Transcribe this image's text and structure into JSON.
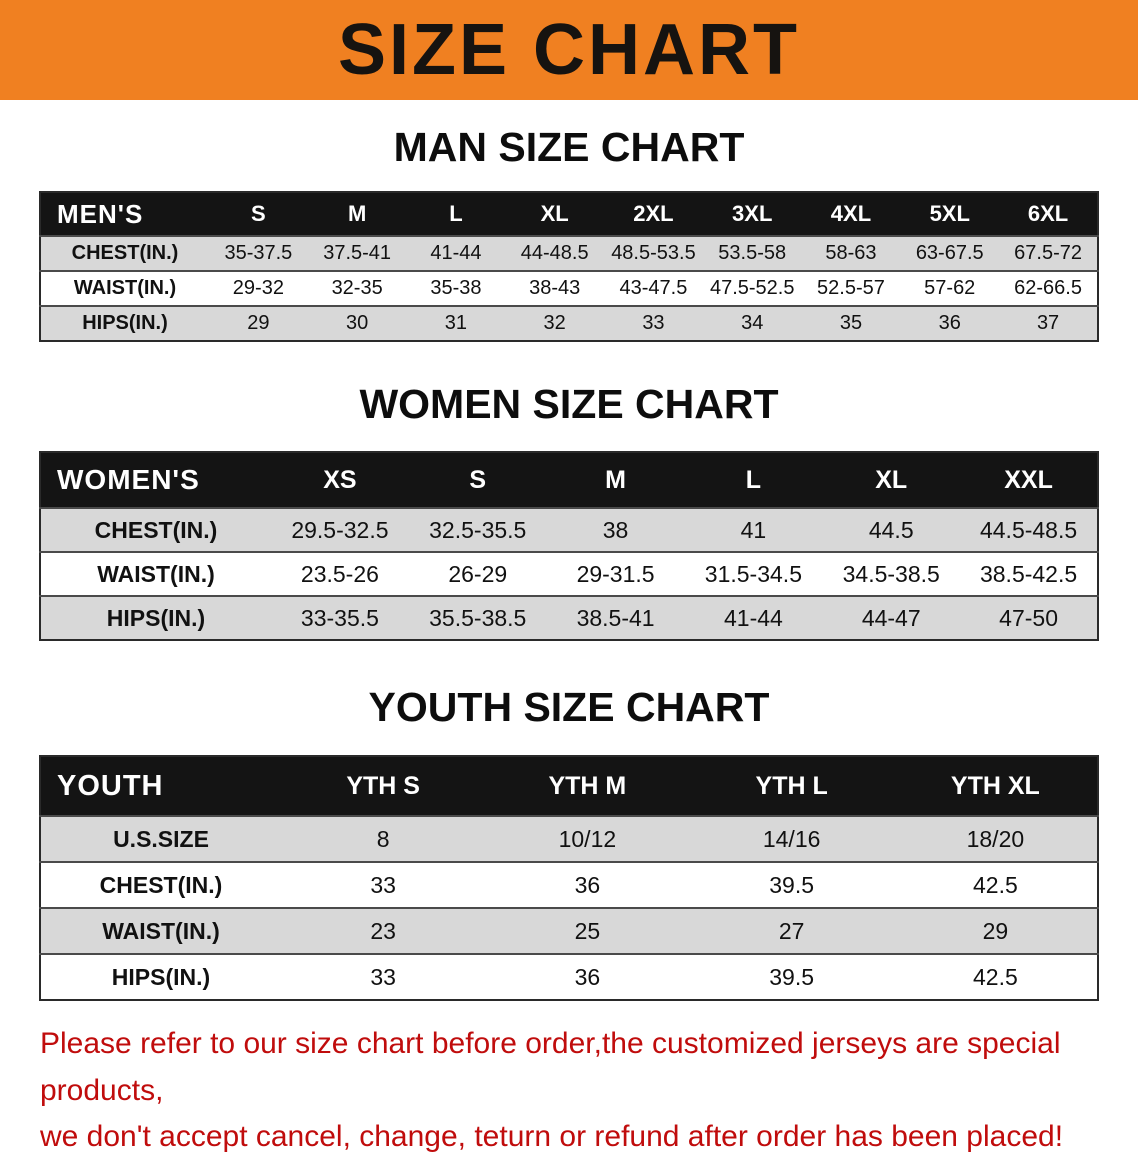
{
  "banner": {
    "title": "SIZE CHART",
    "bg_color": "#f08021"
  },
  "sections": [
    {
      "heading": "MAN SIZE CHART",
      "group_label": "MEN'S",
      "columns": [
        "S",
        "M",
        "L",
        "XL",
        "2XL",
        "3XL",
        "4XL",
        "5XL",
        "6XL"
      ],
      "rows": [
        {
          "label": "CHEST(IN.)",
          "values": [
            "35-37.5",
            "37.5-41",
            "41-44",
            "44-48.5",
            "48.5-53.5",
            "53.5-58",
            "58-63",
            "63-67.5",
            "67.5-72"
          ]
        },
        {
          "label": "WAIST(IN.)",
          "values": [
            "29-32",
            "32-35",
            "35-38",
            "38-43",
            "43-47.5",
            "47.5-52.5",
            "52.5-57",
            "57-62",
            "62-66.5"
          ]
        },
        {
          "label": "HIPS(IN.)",
          "values": [
            "29",
            "30",
            "31",
            "32",
            "33",
            "34",
            "35",
            "36",
            "37"
          ]
        }
      ]
    },
    {
      "heading": "WOMEN SIZE CHART",
      "group_label": "WOMEN'S",
      "columns": [
        "XS",
        "S",
        "M",
        "L",
        "XL",
        "XXL"
      ],
      "rows": [
        {
          "label": "CHEST(IN.)",
          "values": [
            "29.5-32.5",
            "32.5-35.5",
            "38",
            "41",
            "44.5",
            "44.5-48.5"
          ]
        },
        {
          "label": "WAIST(IN.)",
          "values": [
            "23.5-26",
            "26-29",
            "29-31.5",
            "31.5-34.5",
            "34.5-38.5",
            "38.5-42.5"
          ]
        },
        {
          "label": "HIPS(IN.)",
          "values": [
            "33-35.5",
            "35.5-38.5",
            "38.5-41",
            "41-44",
            "44-47",
            "47-50"
          ]
        }
      ]
    },
    {
      "heading": "YOUTH SIZE CHART",
      "group_label": "YOUTH",
      "columns": [
        "YTH S",
        "YTH M",
        "YTH L",
        "YTH XL"
      ],
      "rows": [
        {
          "label": "U.S.SIZE",
          "values": [
            "8",
            "10/12",
            "14/16",
            "18/20"
          ]
        },
        {
          "label": "CHEST(IN.)",
          "values": [
            "33",
            "36",
            "39.5",
            "42.5"
          ]
        },
        {
          "label": "WAIST(IN.)",
          "values": [
            "23",
            "25",
            "27",
            "29"
          ]
        },
        {
          "label": "HIPS(IN.)",
          "values": [
            "33",
            "36",
            "39.5",
            "42.5"
          ]
        }
      ]
    }
  ],
  "footer": {
    "line1": "Please refer to our size chart before order,the customized jerseys are special products,",
    "line2": "we don't accept cancel, change, teturn or refund after order has been placed!",
    "text_color": "#c00c0c"
  }
}
